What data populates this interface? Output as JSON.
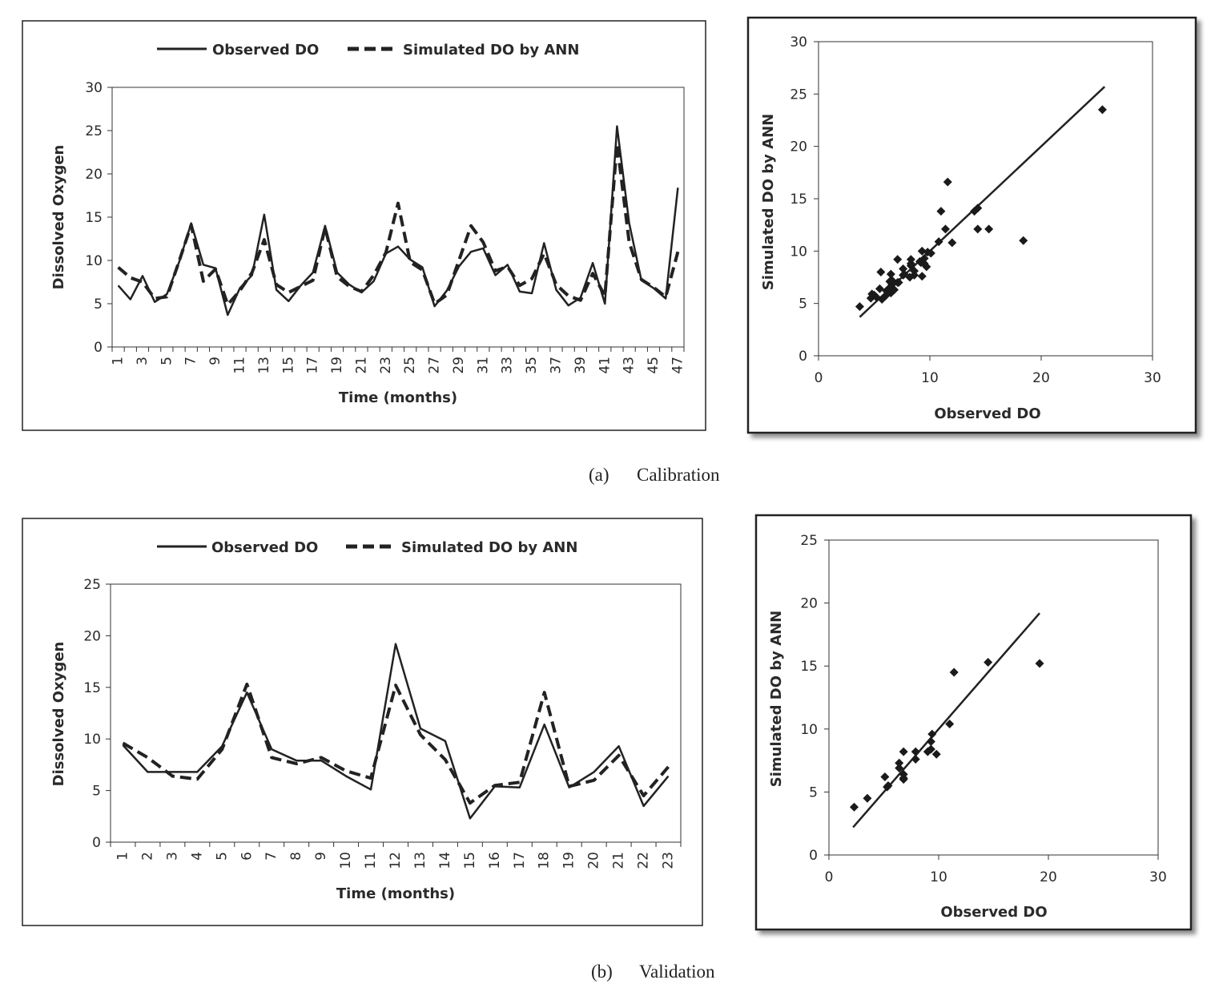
{
  "captions": {
    "a": "(a)",
    "a_text": "Calibration",
    "b": "(b)",
    "b_text": "Validation"
  },
  "chart_data": [
    {
      "type": "line",
      "xlabel": "Time (months)",
      "ylabel": "Dissolved  Oxygen",
      "ylim": [
        0,
        30
      ],
      "yticks": [
        0,
        5,
        10,
        15,
        20,
        25,
        30
      ],
      "xticks": [
        1,
        3,
        5,
        7,
        9,
        11,
        13,
        15,
        17,
        19,
        21,
        23,
        25,
        27,
        29,
        31,
        33,
        35,
        37,
        39,
        41,
        43,
        45,
        47
      ],
      "legend": "top",
      "x": [
        1,
        2,
        3,
        4,
        5,
        6,
        7,
        8,
        9,
        10,
        11,
        12,
        13,
        14,
        15,
        16,
        17,
        18,
        19,
        20,
        21,
        22,
        23,
        24,
        25,
        26,
        27,
        28,
        29,
        30,
        31,
        32,
        33,
        34,
        35,
        36,
        37,
        38,
        39,
        40,
        41,
        42,
        43,
        44,
        45,
        46,
        47
      ],
      "series": [
        {
          "name": "Observed DO",
          "style": "solid",
          "values": [
            7.1,
            5.5,
            8.2,
            5.2,
            6.1,
            9.8,
            14.3,
            9.5,
            9.1,
            3.7,
            6.8,
            8.3,
            15.3,
            6.6,
            5.3,
            7.1,
            8.6,
            14.0,
            8.6,
            7.2,
            6.3,
            7.6,
            10.8,
            11.6,
            10.1,
            9.2,
            4.7,
            6.5,
            9.3,
            11.0,
            11.4,
            8.3,
            9.5,
            6.4,
            6.2,
            12.0,
            6.6,
            4.8,
            5.7,
            9.7,
            5.0,
            25.5,
            14.3,
            7.7,
            6.8,
            5.6,
            18.4
          ]
        },
        {
          "name": "Simulated DO by ANN",
          "style": "dashed",
          "values": [
            9.2,
            8.0,
            7.5,
            5.6,
            5.8,
            9.9,
            14.1,
            7.6,
            9.0,
            4.9,
            6.5,
            8.6,
            12.4,
            7.2,
            6.3,
            7.0,
            7.7,
            13.8,
            8.1,
            7.0,
            6.4,
            8.3,
            10.9,
            16.6,
            9.8,
            8.9,
            5.0,
            6.0,
            10.0,
            14.0,
            12.1,
            8.8,
            9.3,
            7.1,
            7.9,
            10.8,
            7.2,
            5.9,
            5.4,
            8.5,
            5.9,
            23.5,
            12.1,
            7.8,
            6.9,
            5.8,
            11.0
          ]
        }
      ]
    },
    {
      "type": "scatter",
      "xlabel": "Observed DO",
      "ylabel": "Simulated DO by ANN",
      "xlim": [
        0,
        30
      ],
      "ylim": [
        0,
        30
      ],
      "xticks": [
        0,
        10,
        20,
        30
      ],
      "yticks": [
        0,
        5,
        10,
        15,
        20,
        25,
        30
      ],
      "points": [
        [
          3.7,
          4.7
        ],
        [
          4.7,
          5.5
        ],
        [
          4.8,
          5.9
        ],
        [
          5.0,
          5.8
        ],
        [
          5.2,
          5.6
        ],
        [
          5.5,
          6.4
        ],
        [
          5.6,
          8.0
        ],
        [
          5.7,
          5.4
        ],
        [
          6.0,
          5.7
        ],
        [
          6.1,
          6.2
        ],
        [
          6.3,
          6.4
        ],
        [
          6.4,
          7.1
        ],
        [
          6.5,
          6.0
        ],
        [
          6.5,
          7.8
        ],
        [
          6.6,
          7.2
        ],
        [
          6.6,
          6.8
        ],
        [
          6.8,
          6.3
        ],
        [
          7.1,
          7.0
        ],
        [
          7.1,
          9.2
        ],
        [
          7.2,
          7.0
        ],
        [
          7.6,
          8.3
        ],
        [
          7.6,
          7.7
        ],
        [
          7.7,
          7.8
        ],
        [
          8.2,
          7.5
        ],
        [
          8.3,
          8.6
        ],
        [
          8.3,
          8.8
        ],
        [
          8.3,
          9.2
        ],
        [
          8.6,
          8.1
        ],
        [
          8.6,
          7.7
        ],
        [
          9.1,
          9.0
        ],
        [
          9.2,
          8.9
        ],
        [
          9.3,
          7.6
        ],
        [
          9.3,
          10.0
        ],
        [
          9.5,
          8.8
        ],
        [
          9.5,
          9.3
        ],
        [
          9.7,
          8.5
        ],
        [
          9.8,
          9.9
        ],
        [
          10.1,
          9.8
        ],
        [
          10.8,
          10.9
        ],
        [
          11.0,
          13.8
        ],
        [
          11.4,
          12.1
        ],
        [
          11.6,
          16.6
        ],
        [
          12.0,
          10.8
        ],
        [
          14.3,
          14.1
        ],
        [
          14.0,
          13.8
        ],
        [
          15.3,
          12.1
        ],
        [
          14.3,
          12.1
        ],
        [
          18.4,
          11.0
        ],
        [
          25.5,
          23.5
        ]
      ],
      "fit_line": [
        [
          3.7,
          3.7
        ],
        [
          25.7,
          25.7
        ]
      ]
    },
    {
      "type": "line",
      "xlabel": "Time (months)",
      "ylabel": "Dissolved Oxygen",
      "ylim": [
        0,
        25
      ],
      "yticks": [
        0,
        5,
        10,
        15,
        20,
        25
      ],
      "legend": "top",
      "x": [
        1,
        2,
        3,
        4,
        5,
        6,
        7,
        8,
        9,
        10,
        11,
        12,
        13,
        14,
        15,
        16,
        17,
        18,
        19,
        20,
        21,
        22,
        23
      ],
      "series": [
        {
          "name": "Observed DO",
          "style": "solid",
          "values": [
            9.4,
            6.8,
            6.8,
            6.8,
            9.3,
            14.5,
            9.0,
            7.9,
            7.9,
            6.4,
            5.1,
            19.2,
            11.0,
            9.8,
            2.3,
            5.4,
            5.3,
            11.4,
            5.3,
            6.8,
            9.3,
            3.5,
            6.4
          ]
        },
        {
          "name": "Simulated DO by ANN",
          "style": "dashed",
          "values": [
            9.6,
            8.2,
            6.4,
            6.1,
            9.0,
            15.3,
            8.2,
            7.6,
            8.2,
            6.9,
            6.2,
            15.2,
            10.4,
            8.0,
            3.8,
            5.5,
            5.8,
            14.5,
            5.4,
            6.0,
            8.4,
            4.5,
            7.3
          ]
        }
      ]
    },
    {
      "type": "scatter",
      "xlabel": "Observed DO",
      "ylabel": "Simulated DO by ANN",
      "xlim": [
        0,
        30
      ],
      "ylim": [
        0,
        25
      ],
      "xticks": [
        0,
        10,
        20,
        30
      ],
      "yticks": [
        0,
        5,
        10,
        15,
        20,
        25
      ],
      "points": [
        [
          2.3,
          3.8
        ],
        [
          3.5,
          4.5
        ],
        [
          5.1,
          6.2
        ],
        [
          5.3,
          5.4
        ],
        [
          5.4,
          5.5
        ],
        [
          6.4,
          6.9
        ],
        [
          6.4,
          7.3
        ],
        [
          6.8,
          6.4
        ],
        [
          6.8,
          6.1
        ],
        [
          6.8,
          8.2
        ],
        [
          6.8,
          6.0
        ],
        [
          7.9,
          7.6
        ],
        [
          7.9,
          8.2
        ],
        [
          9.0,
          8.2
        ],
        [
          9.3,
          9.0
        ],
        [
          9.3,
          8.4
        ],
        [
          9.4,
          9.6
        ],
        [
          9.8,
          8.0
        ],
        [
          11.0,
          10.4
        ],
        [
          11.4,
          14.5
        ],
        [
          14.5,
          15.3
        ],
        [
          19.2,
          15.2
        ]
      ],
      "fit_line": [
        [
          2.2,
          2.2
        ],
        [
          19.2,
          19.2
        ]
      ]
    }
  ]
}
